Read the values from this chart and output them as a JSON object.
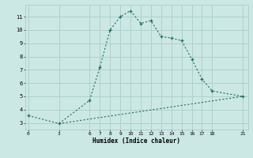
{
  "xlabel": "Humidex (Indice chaleur)",
  "bg_color": "#cce8e5",
  "grid_color": "#aed0cc",
  "line_color": "#1e6e65",
  "line1_x": [
    0,
    3,
    6,
    7,
    8,
    9,
    10,
    11,
    12,
    13,
    14,
    15,
    16,
    17,
    18,
    21
  ],
  "line1_y": [
    3.55,
    2.95,
    4.7,
    7.2,
    10.0,
    11.0,
    11.45,
    10.5,
    10.7,
    9.5,
    9.4,
    9.2,
    7.8,
    6.3,
    5.4,
    5.0
  ],
  "line2_x": [
    3,
    21
  ],
  "line2_y": [
    2.95,
    5.0
  ],
  "xticks": [
    0,
    3,
    6,
    7,
    8,
    9,
    10,
    11,
    12,
    13,
    14,
    15,
    16,
    17,
    18,
    21
  ],
  "yticks": [
    3,
    4,
    5,
    6,
    7,
    8,
    9,
    10,
    11
  ],
  "xlim": [
    -0.3,
    21.5
  ],
  "ylim": [
    2.5,
    11.9
  ]
}
